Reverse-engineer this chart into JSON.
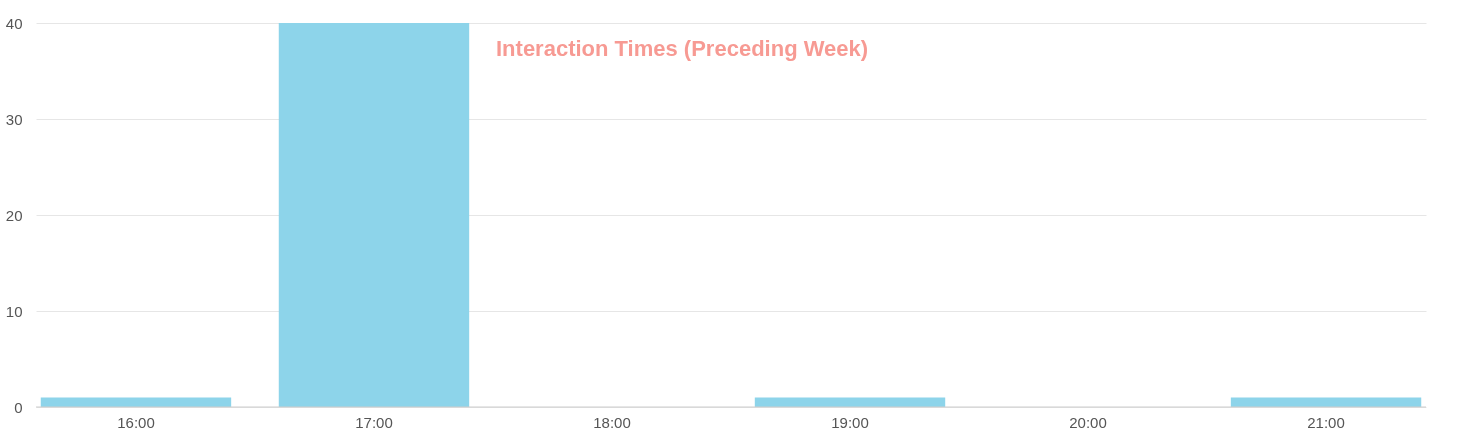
{
  "chart_data": {
    "type": "bar",
    "title": "Interaction Times (Preceding Week)",
    "categories": [
      "16:00",
      "17:00",
      "18:00",
      "19:00",
      "20:00",
      "21:00"
    ],
    "values": [
      1,
      40,
      0,
      1,
      0,
      1
    ],
    "color": "#8dd4ea",
    "ylim": [
      0,
      40
    ],
    "yticks": [
      0,
      10,
      20,
      30,
      40
    ],
    "grid": "y"
  }
}
